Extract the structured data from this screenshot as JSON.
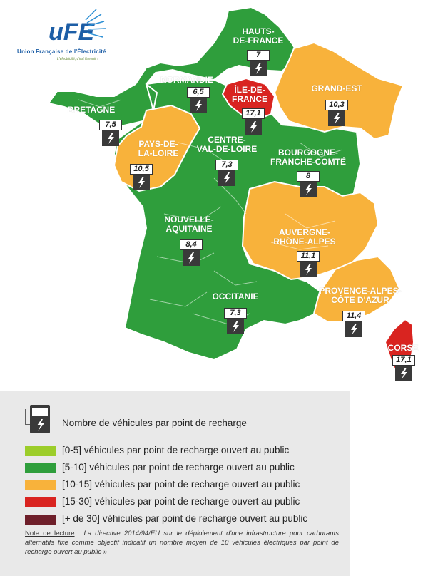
{
  "logo": {
    "brand": "uFE",
    "name": "Union Française de l'Électricité",
    "tagline": "L'électricité, c'est l'avenir !"
  },
  "regions": [
    {
      "id": "hauts-de-france",
      "label": "HAUTS-\nDE-FRANCE",
      "value": "7",
      "category": "5-10"
    },
    {
      "id": "normandie",
      "label": "NORMANDIE",
      "value": "6,5",
      "category": "5-10"
    },
    {
      "id": "ile-de-france",
      "label": "ÎLE-DE-\nFRANCE",
      "value": "17,1",
      "category": "15-30"
    },
    {
      "id": "grand-est",
      "label": "GRAND-EST",
      "value": "10,3",
      "category": "10-15"
    },
    {
      "id": "bretagne",
      "label": "BRETAGNE",
      "value": "7,5",
      "category": "5-10"
    },
    {
      "id": "pays-de-la-loire",
      "label": "PAYS-DE-\nLA-LOIRE",
      "value": "10,5",
      "category": "10-15"
    },
    {
      "id": "centre-val-de-loire",
      "label": "CENTRE-\nVAL-DE-LOIRE",
      "value": "7,3",
      "category": "5-10"
    },
    {
      "id": "bourgogne-franche-comte",
      "label": "BOURGOGNE-\nFRANCHE-COMTÉ",
      "value": "8",
      "category": "5-10"
    },
    {
      "id": "nouvelle-aquitaine",
      "label": "NOUVELLE-\nAQUITAINE",
      "value": "8,4",
      "category": "5-10"
    },
    {
      "id": "auvergne-rhone-alpes",
      "label": "AUVERGNE-\nRHÔNE-ALPES",
      "value": "11,1",
      "category": "10-15"
    },
    {
      "id": "occitanie",
      "label": "OCCITANIE",
      "value": "7,3",
      "category": "5-10"
    },
    {
      "id": "provence-alpes-cote-d-azur",
      "label": "PROVENCE-ALPES-\nCÔTE D'AZUR",
      "value": "11,4",
      "category": "10-15"
    },
    {
      "id": "corse",
      "label": "CORSE",
      "value": "17,1",
      "category": "15-30"
    }
  ],
  "colors": {
    "0-5": "#9ccd2a",
    "5-10": "#2f9e3c",
    "10-15": "#f8b23b",
    "15-30": "#d92420",
    "30+": "#6e1f2a",
    "legend_bg": "#e9e9e9",
    "badge_dark": "#3a3a3a"
  },
  "legend": {
    "title": "Nombre de véhicules par point de recharge",
    "icon": "charging-station-icon",
    "items": [
      {
        "range": "[0-5]",
        "text": "véhicules par point de recharge ouvert au public",
        "color": "#9ccd2a"
      },
      {
        "range": "[5-10]",
        "text": "véhicules par point de recharge ouvert au public",
        "color": "#2f9e3c"
      },
      {
        "range": "[10-15]",
        "text": "véhicules par point de recharge ouvert au public",
        "color": "#f8b23b"
      },
      {
        "range": "[15-30]",
        "text": "véhicules par point de recharge ouvert au public",
        "color": "#d92420"
      },
      {
        "range": "[+ de 30]",
        "text": "véhicules par point de recharge ouvert au public",
        "color": "#6e1f2a"
      }
    ]
  },
  "note": {
    "label": "Note de lecture",
    "text": "La directive 2014/94/EU sur le déploiement d'une infrastructure pour carburants alternatifs fixe comme objectif indicatif un nombre moyen de 10 véhicules électriques par point de recharge ouvert au public »"
  }
}
